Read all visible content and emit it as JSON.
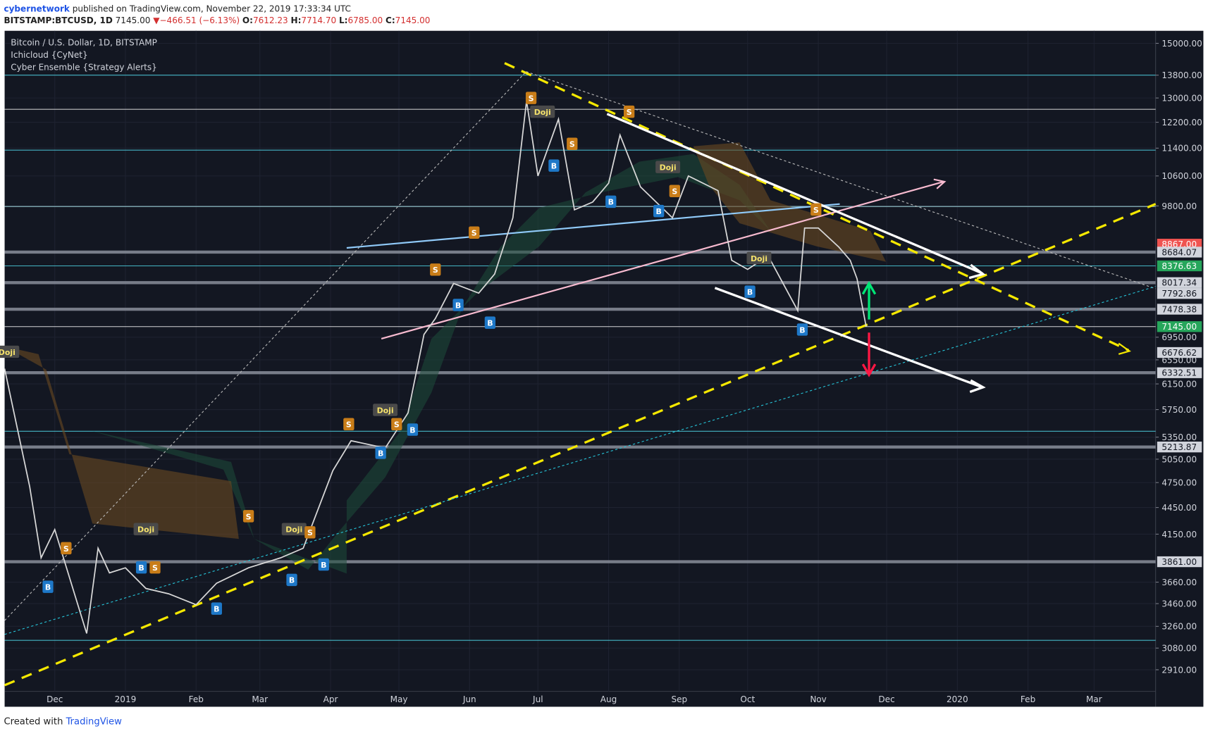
{
  "header": {
    "author": "cybernetwork",
    "published": "published on TradingView.com, November 22, 2019 17:33:34 UTC",
    "symbol": "BITSTAMP:BTCUSD, 1D",
    "last": "7145.00",
    "arrow": "▼",
    "change": "−466.51 (−6.13%)",
    "o_label": "O:",
    "open": "7612.23",
    "h_label": "H:",
    "high": "7714.70",
    "l_label": "L:",
    "low": "6785.00",
    "c_label": "C:",
    "close": "7145.00"
  },
  "footer": {
    "created": "Created with",
    "brand": "TradingView"
  },
  "chart_data": {
    "type": "line",
    "log_scale": true,
    "grid": true,
    "legend": [
      "Bitcoin / U.S. Dollar, 1D, BITSTAMP",
      "Ichicloud {CyNet}",
      "Cyber Ensemble {Strategy Alerts}"
    ],
    "x": [
      -22,
      -11,
      -6,
      0,
      14,
      19,
      24,
      31,
      40,
      50,
      62,
      71,
      85,
      99,
      109,
      122,
      130,
      145,
      155,
      162,
      167,
      175,
      186,
      193,
      201,
      207,
      212,
      221,
      228,
      236,
      243,
      248,
      257,
      271,
      278,
      291,
      297,
      304,
      313,
      326,
      329,
      335,
      344,
      349,
      352,
      356
    ],
    "series": [
      {
        "color": "#d8d8d8",
        "values": [
          6400,
          4700,
          3900,
          4200,
          3200,
          4000,
          3750,
          3800,
          3600,
          3550,
          3450,
          3650,
          3800,
          3900,
          4000,
          4900,
          5300,
          5200,
          5700,
          7000,
          7300,
          8000,
          7800,
          8200,
          9500,
          12900,
          10600,
          12300,
          9700,
          9900,
          10400,
          11800,
          10300,
          9500,
          10600,
          10200,
          8500,
          8300,
          8600,
          7450,
          9250,
          9250,
          8800,
          8500,
          8100,
          7145
        ]
      }
    ],
    "xlim": [
      -22,
      483
    ],
    "xticks": [
      {
        "value": 0,
        "label": "Dec"
      },
      {
        "value": 31,
        "label": "2019"
      },
      {
        "value": 62,
        "label": "Feb"
      },
      {
        "value": 90,
        "label": "Mar"
      },
      {
        "value": 121,
        "label": "Apr"
      },
      {
        "value": 151,
        "label": "May"
      },
      {
        "value": 182,
        "label": "Jun"
      },
      {
        "value": 212,
        "label": "Jul"
      },
      {
        "value": 243,
        "label": "Aug"
      },
      {
        "value": 274,
        "label": "Sep"
      },
      {
        "value": 304,
        "label": "Oct"
      },
      {
        "value": 335,
        "label": "Nov"
      },
      {
        "value": 365,
        "label": "Dec"
      },
      {
        "value": 396,
        "label": "2020"
      },
      {
        "value": 427,
        "label": "Feb"
      },
      {
        "value": 456,
        "label": "Mar"
      }
    ],
    "ylim": [
      2750,
      15500
    ],
    "yticks": [
      {
        "value": 15000,
        "label": "15000.00"
      },
      {
        "value": 13800,
        "label": "13800.00"
      },
      {
        "value": 13000,
        "label": "13000.00"
      },
      {
        "value": 12200,
        "label": "12200.00"
      },
      {
        "value": 11400,
        "label": "11400.00"
      },
      {
        "value": 10600,
        "label": "10600.00"
      },
      {
        "value": 9800,
        "label": "9800.00"
      },
      {
        "value": 6950,
        "label": "6950.00"
      },
      {
        "value": 6550,
        "label": "6550.00"
      },
      {
        "value": 6150,
        "label": "6150.00"
      },
      {
        "value": 5750,
        "label": "5750.00"
      },
      {
        "value": 5350,
        "label": "5350.00"
      },
      {
        "value": 5050,
        "label": "5050.00"
      },
      {
        "value": 4750,
        "label": "4750.00"
      },
      {
        "value": 4450,
        "label": "4450.00"
      },
      {
        "value": 4150,
        "label": "4150.00"
      },
      {
        "value": 3660,
        "label": "3660.00"
      },
      {
        "value": 3460,
        "label": "3460.00"
      },
      {
        "value": 3260,
        "label": "3260.00"
      },
      {
        "value": 3080,
        "label": "3080.00"
      },
      {
        "value": 2910,
        "label": "2910.00"
      }
    ],
    "price_tags": [
      {
        "value": 8867,
        "label": "8867.00",
        "color": "#ef5350"
      },
      {
        "value": 8684.07,
        "label": "8684.07",
        "color": "#d1d4dc"
      },
      {
        "value": 8376.63,
        "label": "8376.63",
        "color": "#26a65b"
      },
      {
        "value": 8017.34,
        "label": "8017.34",
        "color": "#d1d4dc"
      },
      {
        "value": 7792.86,
        "label": "7792.86",
        "color": "#d1d4dc"
      },
      {
        "value": 7478.38,
        "label": "7478.38",
        "color": "#d1d4dc"
      },
      {
        "value": 7145,
        "label": "7145.00",
        "color": "#26a65b"
      },
      {
        "value": 6676.62,
        "label": "6676.62",
        "color": "#d1d4dc"
      },
      {
        "value": 6332.51,
        "label": "6332.51",
        "color": "#d1d4dc"
      },
      {
        "value": 5213.87,
        "label": "5213.87",
        "color": "#d1d4dc"
      },
      {
        "value": 3861,
        "label": "3861.00",
        "color": "#d1d4dc"
      }
    ],
    "horizontal_lines": [
      {
        "value": 13800,
        "color": "#4dd0e1"
      },
      {
        "value": 12620,
        "color": "#e0e0e0"
      },
      {
        "value": 11340,
        "color": "#4dd0e1"
      },
      {
        "value": 9785,
        "color": "#b2ebf2"
      },
      {
        "value": 8684.07,
        "color": "#8a8f9c"
      },
      {
        "value": 8376.63,
        "color": "#4dd0e1"
      },
      {
        "value": 8017.34,
        "color": "#8a8f9c"
      },
      {
        "value": 7478.38,
        "color": "#8a8f9c"
      },
      {
        "value": 7145,
        "color": "#f5f5f5"
      },
      {
        "value": 6332.51,
        "color": "#8a8f9c"
      },
      {
        "value": 5433,
        "color": "#4dd0e1"
      },
      {
        "value": 5213.87,
        "color": "#8a8f9c"
      },
      {
        "value": 3861,
        "color": "#8a8f9c"
      },
      {
        "value": 3143,
        "color": "#4dd0e1"
      }
    ],
    "signals": [
      {
        "text": "Doji",
        "x": -21,
        "y": 6690,
        "color": "#4a4a4a"
      },
      {
        "text": "S",
        "x": 5,
        "y": 4000,
        "color": "#c97d18"
      },
      {
        "text": "B",
        "x": -3,
        "y": 3616,
        "color": "#1e78c8"
      },
      {
        "text": "Doji",
        "x": 40,
        "y": 4205,
        "color": "#4a4a4a"
      },
      {
        "text": "B",
        "x": 38,
        "y": 3804,
        "color": "#1e78c8"
      },
      {
        "text": "S",
        "x": 44,
        "y": 3804,
        "color": "#c97d18"
      },
      {
        "text": "S",
        "x": 85,
        "y": 4350,
        "color": "#c97d18"
      },
      {
        "text": "B",
        "x": 71,
        "y": 3415,
        "color": "#1e78c8"
      },
      {
        "text": "B",
        "x": 104,
        "y": 3682,
        "color": "#1e78c8"
      },
      {
        "text": "Doji",
        "x": 105,
        "y": 4205,
        "color": "#4a4a4a"
      },
      {
        "text": "S",
        "x": 112,
        "y": 4170,
        "color": "#c97d18"
      },
      {
        "text": "B",
        "x": 118,
        "y": 3833,
        "color": "#1e78c8"
      },
      {
        "text": "Doji",
        "x": 145,
        "y": 5745,
        "color": "#4a4a4a"
      },
      {
        "text": "S",
        "x": 129,
        "y": 5535,
        "color": "#c97d18"
      },
      {
        "text": "S",
        "x": 150,
        "y": 5535,
        "color": "#c97d18"
      },
      {
        "text": "B",
        "x": 143,
        "y": 5135,
        "color": "#1e78c8"
      },
      {
        "text": "B",
        "x": 157,
        "y": 5456,
        "color": "#1e78c8"
      },
      {
        "text": "S",
        "x": 167,
        "y": 8295,
        "color": "#c97d18"
      },
      {
        "text": "B",
        "x": 177,
        "y": 7562,
        "color": "#1e78c8"
      },
      {
        "text": "B",
        "x": 191,
        "y": 7220,
        "color": "#1e78c8"
      },
      {
        "text": "S",
        "x": 184,
        "y": 9140,
        "color": "#c97d18"
      },
      {
        "text": "S",
        "x": 209,
        "y": 13000,
        "color": "#c97d18"
      },
      {
        "text": "Doji",
        "x": 214,
        "y": 12540,
        "color": "#4a4a4a"
      },
      {
        "text": "B",
        "x": 219,
        "y": 10890,
        "color": "#1e78c8"
      },
      {
        "text": "S",
        "x": 227,
        "y": 11530,
        "color": "#c97d18"
      },
      {
        "text": "B",
        "x": 244,
        "y": 9910,
        "color": "#1e78c8"
      },
      {
        "text": "S",
        "x": 252,
        "y": 12540,
        "color": "#c97d18"
      },
      {
        "text": "Doji",
        "x": 269,
        "y": 10850,
        "color": "#4a4a4a"
      },
      {
        "text": "B",
        "x": 265,
        "y": 9670,
        "color": "#1e78c8"
      },
      {
        "text": "S",
        "x": 272,
        "y": 10190,
        "color": "#c97d18"
      },
      {
        "text": "Doji",
        "x": 309,
        "y": 8550,
        "color": "#4a4a4a"
      },
      {
        "text": "B",
        "x": 305,
        "y": 7830,
        "color": "#1e78c8"
      },
      {
        "text": "B",
        "x": 328,
        "y": 7090,
        "color": "#1e78c8"
      },
      {
        "text": "S",
        "x": 334,
        "y": 9710,
        "color": "#c97d18"
      }
    ]
  }
}
